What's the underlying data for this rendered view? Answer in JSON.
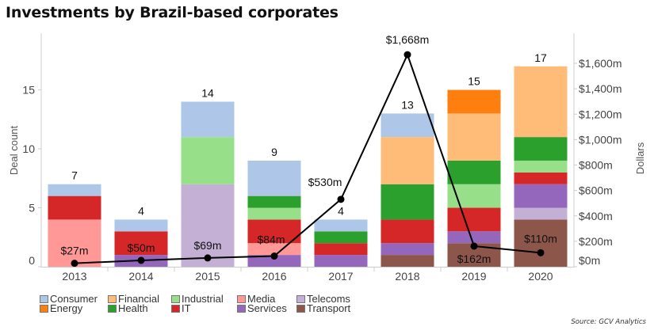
{
  "chart_data": {
    "type": "bar",
    "subtype": "stacked-bar-with-line",
    "title": "Investments by Brazil-based corporates",
    "categories": [
      "2013",
      "2014",
      "2015",
      "2016",
      "2017",
      "2018",
      "2019",
      "2020"
    ],
    "stack_order": [
      "Transport",
      "Telecoms",
      "Services",
      "Media",
      "IT",
      "Industrial",
      "Health",
      "Financial",
      "Energy",
      "Consumer"
    ],
    "series": [
      {
        "name": "Consumer",
        "color": "#aec7e8",
        "values": [
          1,
          1,
          3,
          3,
          1,
          2,
          0,
          0
        ]
      },
      {
        "name": "Energy",
        "color": "#ff7f0e",
        "values": [
          0,
          0,
          0,
          0,
          0,
          0,
          2,
          0
        ]
      },
      {
        "name": "Financial",
        "color": "#ffbb78",
        "values": [
          0,
          0,
          0,
          0,
          0,
          4,
          4,
          6
        ]
      },
      {
        "name": "Health",
        "color": "#2ca02c",
        "values": [
          0,
          0,
          0,
          1,
          1,
          3,
          2,
          2
        ]
      },
      {
        "name": "Industrial",
        "color": "#98df8a",
        "values": [
          0,
          0,
          4,
          1,
          0,
          0,
          2,
          1
        ]
      },
      {
        "name": "IT",
        "color": "#d62728",
        "values": [
          2,
          2,
          0,
          2,
          1,
          2,
          2,
          1
        ]
      },
      {
        "name": "Media",
        "color": "#ff9896",
        "values": [
          4,
          0,
          0,
          1,
          0,
          0,
          0,
          0
        ]
      },
      {
        "name": "Services",
        "color": "#9467bd",
        "values": [
          0,
          1,
          0,
          1,
          1,
          1,
          1,
          2
        ]
      },
      {
        "name": "Telecoms",
        "color": "#c5b0d5",
        "values": [
          0,
          0,
          7,
          0,
          0,
          0,
          0,
          1
        ]
      },
      {
        "name": "Transport",
        "color": "#8c564b",
        "values": [
          0,
          0,
          0,
          0,
          0,
          1,
          2,
          4
        ]
      }
    ],
    "totals": [
      "7",
      "4",
      "14",
      "9",
      "4",
      "13",
      "15",
      "17"
    ],
    "line_series": {
      "name": "Dollars",
      "values": [
        27,
        50,
        69,
        84,
        530,
        1668,
        162,
        110
      ],
      "labels": [
        "$27m",
        "$50m",
        "$69m",
        "$84m",
        "$530m",
        "$1,668m",
        "$162m",
        "$110m"
      ],
      "color": "#000000"
    },
    "ylabel": "Deal count",
    "ylim": [
      0,
      19
    ],
    "yticks": [
      "0",
      "5",
      "10",
      "15"
    ],
    "ytick_values": [
      0,
      5,
      10,
      15
    ],
    "y2label": "Dollars",
    "y2lim": [
      0,
      1750
    ],
    "y2ticks": [
      "$0m",
      "$200m",
      "$400m",
      "$600m",
      "$800m",
      "$1,000m",
      "$1,200m",
      "$1,400m",
      "$1,600m"
    ],
    "y2tick_values": [
      0,
      200,
      400,
      600,
      800,
      1000,
      1200,
      1400,
      1600
    ],
    "grid": false,
    "legend_position": "bottom-left"
  },
  "legend": [
    {
      "label": "Consumer",
      "color": "#aec7e8"
    },
    {
      "label": "Financial",
      "color": "#ffbb78"
    },
    {
      "label": "Industrial",
      "color": "#98df8a"
    },
    {
      "label": "Media",
      "color": "#ff9896"
    },
    {
      "label": "Telecoms",
      "color": "#c5b0d5"
    },
    {
      "label": "Energy",
      "color": "#ff7f0e"
    },
    {
      "label": "Health",
      "color": "#2ca02c"
    },
    {
      "label": "IT",
      "color": "#d62728"
    },
    {
      "label": "Services",
      "color": "#9467bd"
    },
    {
      "label": "Transport",
      "color": "#8c564b"
    }
  ],
  "source": "Source: GCV Analytics"
}
